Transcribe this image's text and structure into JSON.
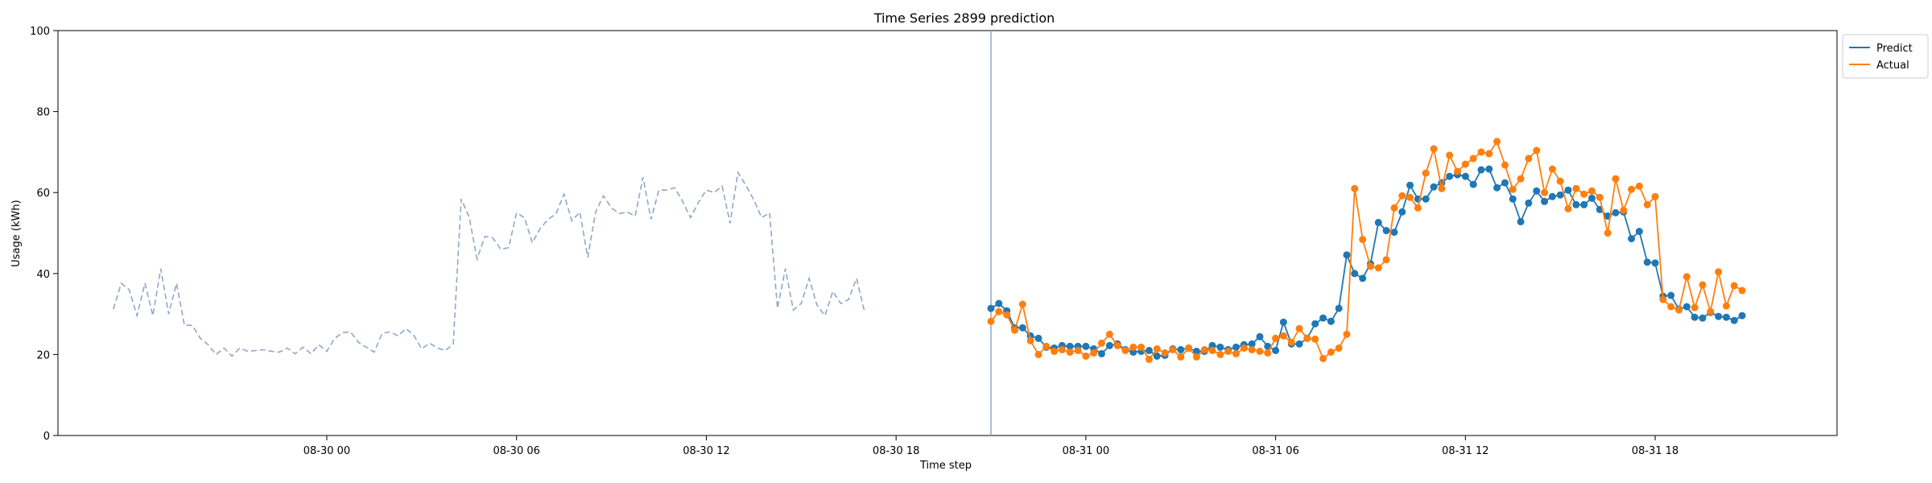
{
  "chart_data": {
    "type": "line",
    "title": "Time Series 2899 prediction",
    "xlabel": "Time step",
    "ylabel": "Usage (kWh)",
    "ylim": [
      0,
      100
    ],
    "yticks": [
      0,
      20,
      40,
      60,
      80,
      100
    ],
    "xlim": [
      "2024-08-29 15:30",
      "2024-08-31 23:45"
    ],
    "xticks": [
      {
        "t": "2024-08-30 00:00",
        "label": "08-30 00"
      },
      {
        "t": "2024-08-30 06:00",
        "label": "08-30 06"
      },
      {
        "t": "2024-08-30 12:00",
        "label": "08-30 12"
      },
      {
        "t": "2024-08-30 18:00",
        "label": "08-30 18"
      },
      {
        "t": "2024-08-31 00:00",
        "label": "08-31 00"
      },
      {
        "t": "2024-08-31 06:00",
        "label": "08-31 06"
      },
      {
        "t": "2024-08-31 12:00",
        "label": "08-31 12"
      },
      {
        "t": "2024-08-31 18:00",
        "label": "08-31 18"
      }
    ],
    "x_interval_minutes": 15,
    "grid": false,
    "legend": {
      "position": "top-right",
      "entries": [
        "Predict",
        "Actual"
      ]
    },
    "forecast_start": "2024-08-30 21:00",
    "series": [
      {
        "name": "",
        "style": "dashed",
        "color": "#8fa8c8",
        "x_start": "2024-08-29 17:15",
        "values": [
          31.2,
          37.6,
          36.0,
          29.6,
          37.6,
          29.6,
          41.2,
          30.0,
          37.6,
          27.2,
          27.2,
          24.0,
          22.4,
          20.0,
          21.6,
          19.6,
          21.6,
          20.8,
          21.0,
          21.2,
          20.8,
          20.6,
          21.6,
          20.2,
          21.8,
          20.2,
          22.4,
          20.8,
          24.0,
          25.4,
          25.6,
          23.0,
          21.8,
          20.6,
          25.2,
          25.6,
          24.6,
          26.4,
          24.8,
          21.4,
          22.8,
          21.6,
          21.0,
          22.6,
          58.4,
          54.0,
          43.6,
          49.2,
          48.8,
          46.0,
          46.4,
          55.0,
          53.8,
          47.6,
          51.2,
          53.4,
          54.8,
          59.6,
          53.0,
          55.2,
          44.0,
          55.2,
          59.2,
          56.2,
          54.8,
          55.2,
          54.2,
          63.8,
          53.4,
          60.6,
          60.6,
          61.2,
          57.8,
          53.8,
          57.6,
          60.6,
          60.0,
          61.6,
          52.4,
          65.0,
          61.8,
          58.2,
          53.8,
          55.0,
          31.4,
          41.2,
          31.0,
          32.6,
          38.8,
          32.2,
          29.6,
          35.6,
          32.6,
          33.6,
          38.8,
          30.6
        ]
      },
      {
        "name": "Predict",
        "style": "solid-markers",
        "color": "#1f77b4",
        "x_start": "2024-08-30 21:00",
        "values": [
          31.4,
          32.6,
          30.8,
          26.6,
          26.6,
          24.6,
          24.0,
          21.8,
          21.6,
          22.2,
          22.0,
          22.0,
          22.0,
          21.4,
          20.2,
          22.2,
          22.6,
          21.2,
          20.6,
          20.8,
          21.0,
          19.6,
          19.8,
          21.4,
          21.2,
          21.6,
          20.8,
          20.8,
          22.2,
          21.8,
          21.2,
          21.8,
          22.4,
          22.6,
          24.4,
          22.0,
          21.0,
          28.0,
          22.6,
          22.6,
          24.0,
          27.6,
          29.0,
          28.2,
          31.4,
          44.6,
          40.0,
          38.8,
          42.4,
          52.6,
          50.6,
          50.2,
          55.2,
          61.8,
          58.4,
          58.4,
          61.4,
          62.4,
          64.0,
          64.4,
          64.0,
          62.0,
          65.6,
          65.8,
          61.2,
          62.4,
          58.4,
          52.8,
          57.4,
          60.4,
          57.8,
          59.0,
          59.4,
          60.6,
          57.0,
          57.0,
          58.6,
          55.8,
          54.2,
          55.0,
          55.2,
          48.6,
          50.4,
          42.8,
          42.6,
          34.4,
          34.6,
          31.2,
          31.8,
          29.2,
          29.0,
          30.4,
          29.4,
          29.2,
          28.4,
          29.6
        ]
      },
      {
        "name": "Actual",
        "style": "solid-markers",
        "color": "#ff7f0e",
        "x_start": "2024-08-30 21:00",
        "values": [
          28.2,
          30.6,
          29.8,
          26.0,
          32.4,
          23.4,
          20.0,
          22.0,
          20.8,
          21.2,
          20.6,
          21.0,
          19.6,
          20.4,
          22.8,
          25.0,
          22.2,
          21.0,
          21.8,
          21.8,
          18.8,
          21.4,
          20.4,
          21.2,
          19.4,
          21.6,
          19.4,
          21.2,
          21.0,
          20.0,
          20.8,
          20.2,
          21.6,
          21.2,
          20.8,
          20.4,
          24.0,
          24.6,
          23.0,
          26.4,
          24.0,
          23.8,
          19.0,
          20.6,
          21.6,
          25.0,
          61.0,
          48.4,
          41.8,
          41.4,
          43.4,
          56.2,
          59.2,
          58.8,
          56.2,
          64.8,
          70.8,
          61.0,
          69.2,
          65.2,
          67.0,
          68.4,
          70.0,
          69.6,
          72.6,
          66.8,
          60.8,
          63.4,
          68.4,
          70.4,
          60.0,
          65.8,
          62.8,
          56.0,
          61.0,
          59.6,
          60.4,
          58.8,
          50.0,
          63.4,
          55.6,
          60.8,
          61.6,
          57.0,
          59.0,
          33.6,
          31.8,
          31.0,
          39.2,
          31.6,
          37.2,
          30.6,
          40.4,
          32.0,
          37.0,
          35.8
        ]
      }
    ]
  }
}
